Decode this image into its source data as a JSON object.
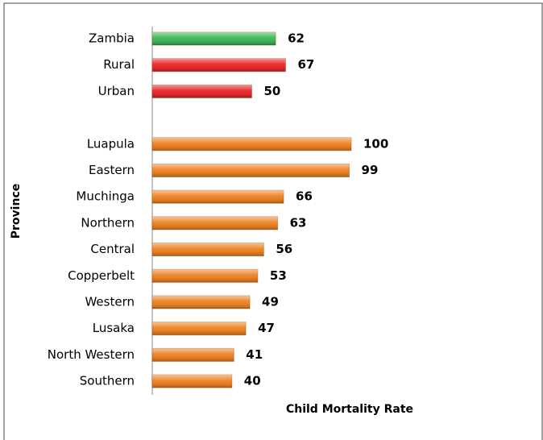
{
  "chart_data": {
    "type": "bar",
    "orientation": "horizontal",
    "categories": [
      "Zambia",
      "Rural",
      "Urban",
      null,
      "Luapula",
      "Eastern",
      "Muchinga",
      "Northern",
      "Central",
      "Copperbelt",
      "Western",
      "Lusaka",
      "North Western",
      "Southern"
    ],
    "values": [
      62,
      67,
      50,
      null,
      100,
      99,
      66,
      63,
      56,
      53,
      49,
      47,
      41,
      40
    ],
    "colors": [
      "#2eb24a",
      "#e8161b",
      "#e8161b",
      null,
      "#ee7a12",
      "#ee7a12",
      "#ee7a12",
      "#ee7a12",
      "#ee7a12",
      "#ee7a12",
      "#ee7a12",
      "#ee7a12",
      "#ee7a12",
      "#ee7a12"
    ],
    "xlim": [
      0,
      100
    ],
    "x_label": "Child Mortality Rate",
    "y_label": "Province"
  }
}
